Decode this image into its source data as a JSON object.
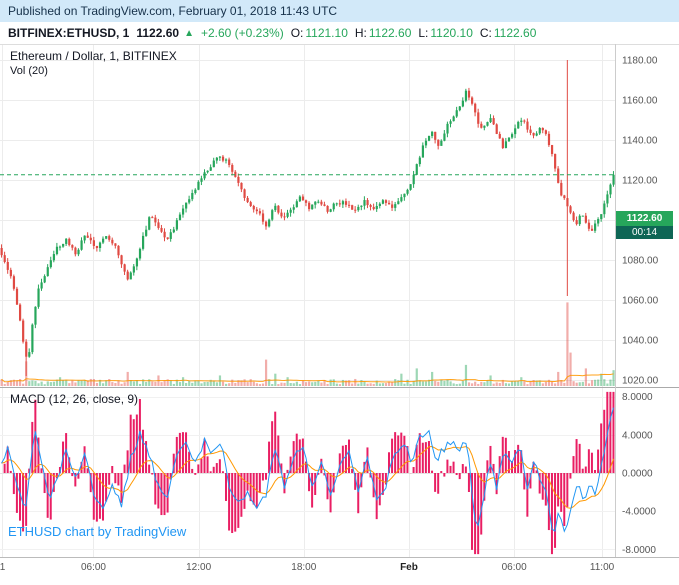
{
  "published_bar": {
    "text": "Published on TradingView.com, February 01, 2018 11:43 UTC"
  },
  "quote_bar": {
    "symbol": "BITFINEX:ETHUSD, 1",
    "last": "1122.60",
    "arrow": "▲",
    "change": "+2.60 (+0.23%)",
    "open_label": "O:",
    "open_value": "1121.10",
    "high_label": "H:",
    "high_value": "1122.60",
    "low_label": "L:",
    "low_value": "1120.10",
    "close_label": "C:",
    "close_value": "1122.60"
  },
  "legends": {
    "price": "Ethereum / Dollar, 1, BITFINEX",
    "volume": "Vol (20)",
    "macd": "MACD (12, 26, close, 9)"
  },
  "badges": {
    "last_price": "1122.60",
    "countdown": "00:14"
  },
  "watermark": {
    "text": "ETHUSD chart by TradingView"
  },
  "time_axis": {
    "ticks": [
      {
        "label": "1",
        "f": 0.004,
        "grid": true,
        "bold": false
      },
      {
        "label": "06:00",
        "f": 0.152,
        "grid": true,
        "bold": false
      },
      {
        "label": "12:00",
        "f": 0.323,
        "grid": true,
        "bold": false
      },
      {
        "label": "18:00",
        "f": 0.494,
        "grid": true,
        "bold": false
      },
      {
        "label": "Feb",
        "f": 0.665,
        "grid": true,
        "bold": true
      },
      {
        "label": "06:00",
        "f": 0.836,
        "grid": true,
        "bold": false
      },
      {
        "label": "11:00",
        "f": 0.979,
        "grid": true,
        "bold": false
      }
    ]
  },
  "colors": {
    "up": "#26a65b",
    "down": "#e04a43",
    "macd_line": "#2196f3",
    "signal_line": "#ff9800",
    "histogram": "#e91e63",
    "badge_bg": "#26a65b",
    "countdown_bg": "#0e6655",
    "published_bg": "#d2e9f9",
    "published_fg": "#16314a",
    "watermark": "#2196f3",
    "dashed_line": "#26a65b",
    "grid": "#ececec",
    "axis_text": "#555555"
  },
  "chart_data": [
    {
      "type": "candlestick",
      "title": "Ethereum / Dollar, 1, BITFINEX",
      "interval": "1",
      "ylim": [
        1017,
        1188
      ],
      "y_ticks": [
        1180,
        1160,
        1140,
        1120,
        1100,
        1080,
        1060,
        1040,
        1020
      ],
      "last": 1122.6,
      "price_path": [
        [
          0,
          1086
        ],
        [
          0.01,
          1080
        ],
        [
          0.02,
          1072
        ],
        [
          0.03,
          1058
        ],
        [
          0.04,
          1040
        ],
        [
          0.048,
          1028
        ],
        [
          0.055,
          1048
        ],
        [
          0.065,
          1066
        ],
        [
          0.08,
          1076
        ],
        [
          0.095,
          1086
        ],
        [
          0.11,
          1090
        ],
        [
          0.125,
          1083
        ],
        [
          0.14,
          1092
        ],
        [
          0.15,
          1090
        ],
        [
          0.16,
          1085
        ],
        [
          0.175,
          1093
        ],
        [
          0.19,
          1087
        ],
        [
          0.2,
          1078
        ],
        [
          0.21,
          1070
        ],
        [
          0.222,
          1078
        ],
        [
          0.235,
          1092
        ],
        [
          0.248,
          1103
        ],
        [
          0.26,
          1097
        ],
        [
          0.272,
          1090
        ],
        [
          0.285,
          1096
        ],
        [
          0.3,
          1105
        ],
        [
          0.315,
          1113
        ],
        [
          0.33,
          1121
        ],
        [
          0.345,
          1127
        ],
        [
          0.36,
          1132
        ],
        [
          0.372,
          1129
        ],
        [
          0.385,
          1122
        ],
        [
          0.398,
          1112
        ],
        [
          0.41,
          1108
        ],
        [
          0.425,
          1103
        ],
        [
          0.435,
          1097
        ],
        [
          0.448,
          1108
        ],
        [
          0.46,
          1101
        ],
        [
          0.475,
          1105
        ],
        [
          0.49,
          1111
        ],
        [
          0.505,
          1106
        ],
        [
          0.52,
          1110
        ],
        [
          0.535,
          1105
        ],
        [
          0.55,
          1109
        ],
        [
          0.565,
          1108
        ],
        [
          0.58,
          1104
        ],
        [
          0.595,
          1109
        ],
        [
          0.61,
          1105
        ],
        [
          0.625,
          1110
        ],
        [
          0.64,
          1107
        ],
        [
          0.655,
          1111
        ],
        [
          0.668,
          1116
        ],
        [
          0.68,
          1127
        ],
        [
          0.692,
          1139
        ],
        [
          0.705,
          1143
        ],
        [
          0.715,
          1137
        ],
        [
          0.728,
          1146
        ],
        [
          0.74,
          1152
        ],
        [
          0.752,
          1158
        ],
        [
          0.762,
          1165
        ],
        [
          0.772,
          1156
        ],
        [
          0.782,
          1147
        ],
        [
          0.792,
          1146
        ],
        [
          0.8,
          1152
        ],
        [
          0.81,
          1143
        ],
        [
          0.82,
          1137
        ],
        [
          0.83,
          1141
        ],
        [
          0.842,
          1148
        ],
        [
          0.852,
          1151
        ],
        [
          0.862,
          1145
        ],
        [
          0.872,
          1141
        ],
        [
          0.882,
          1146
        ],
        [
          0.892,
          1141
        ],
        [
          0.9,
          1133
        ],
        [
          0.908,
          1122
        ],
        [
          0.916,
          1112
        ],
        [
          0.924,
          1108
        ],
        [
          0.932,
          1101
        ],
        [
          0.94,
          1097
        ],
        [
          0.948,
          1104
        ],
        [
          0.956,
          1098
        ],
        [
          0.964,
          1094
        ],
        [
          0.972,
          1099
        ],
        [
          0.98,
          1104
        ],
        [
          0.988,
          1110
        ],
        [
          0.994,
          1116
        ],
        [
          1,
          1122.6
        ]
      ],
      "spikes": [
        {
          "f": 0.045,
          "low": 1022
        },
        {
          "f": 0.925,
          "high": 1180,
          "low": 1062
        }
      ],
      "volume": {
        "label": "Vol (20)",
        "scale_max": 100,
        "base_range": [
          2,
          8
        ],
        "spikes": [
          [
            0.045,
            28
          ],
          [
            0.1,
            10
          ],
          [
            0.15,
            8
          ],
          [
            0.21,
            16
          ],
          [
            0.26,
            12
          ],
          [
            0.3,
            10
          ],
          [
            0.36,
            12
          ],
          [
            0.435,
            30
          ],
          [
            0.45,
            14
          ],
          [
            0.47,
            10
          ],
          [
            0.58,
            8
          ],
          [
            0.655,
            14
          ],
          [
            0.68,
            20
          ],
          [
            0.705,
            16
          ],
          [
            0.76,
            24
          ],
          [
            0.8,
            12
          ],
          [
            0.85,
            10
          ],
          [
            0.91,
            16
          ],
          [
            0.925,
            95
          ],
          [
            0.93,
            38
          ],
          [
            0.955,
            20
          ],
          [
            0.98,
            14
          ],
          [
            1,
            18
          ]
        ]
      },
      "seed": 7
    },
    {
      "type": "macd",
      "title": "MACD (12, 26, close, 9)",
      "ylim": [
        -8.8,
        8.8
      ],
      "y_ticks": [
        8,
        4,
        0,
        -4,
        -8
      ],
      "macd_path": [
        [
          0,
          0.5
        ],
        [
          0.015,
          2.5
        ],
        [
          0.03,
          -1.5
        ],
        [
          0.045,
          -3.5
        ],
        [
          0.058,
          4.8
        ],
        [
          0.07,
          1
        ],
        [
          0.082,
          -2.8
        ],
        [
          0.095,
          -1
        ],
        [
          0.11,
          2.8
        ],
        [
          0.125,
          -0.5
        ],
        [
          0.14,
          2.2
        ],
        [
          0.155,
          -2.2
        ],
        [
          0.17,
          -3.8
        ],
        [
          0.185,
          -1
        ],
        [
          0.2,
          -3.5
        ],
        [
          0.215,
          1.5
        ],
        [
          0.23,
          4.2
        ],
        [
          0.245,
          2
        ],
        [
          0.26,
          -1.5
        ],
        [
          0.275,
          -2.5
        ],
        [
          0.29,
          1.8
        ],
        [
          0.305,
          3.2
        ],
        [
          0.32,
          1
        ],
        [
          0.335,
          3.5
        ],
        [
          0.35,
          2
        ],
        [
          0.362,
          3.3
        ],
        [
          0.375,
          -1.2
        ],
        [
          0.39,
          -3.2
        ],
        [
          0.405,
          -2
        ],
        [
          0.42,
          -3.6
        ],
        [
          0.435,
          -2.2
        ],
        [
          0.45,
          2.6
        ],
        [
          0.465,
          -1.4
        ],
        [
          0.48,
          1.8
        ],
        [
          0.495,
          2.8
        ],
        [
          0.51,
          -1.6
        ],
        [
          0.525,
          1.4
        ],
        [
          0.54,
          -2.4
        ],
        [
          0.555,
          1.2
        ],
        [
          0.57,
          2.4
        ],
        [
          0.585,
          -1.8
        ],
        [
          0.6,
          1.6
        ],
        [
          0.615,
          -2.6
        ],
        [
          0.63,
          -1.2
        ],
        [
          0.645,
          2.2
        ],
        [
          0.66,
          3
        ],
        [
          0.672,
          1.2
        ],
        [
          0.685,
          3.8
        ],
        [
          0.7,
          4.2
        ],
        [
          0.712,
          1.4
        ],
        [
          0.725,
          2.6
        ],
        [
          0.738,
          3.4
        ],
        [
          0.75,
          2.2
        ],
        [
          0.762,
          3.6
        ],
        [
          0.77,
          -2
        ],
        [
          0.778,
          -6.6
        ],
        [
          0.788,
          -3
        ],
        [
          0.798,
          1.6
        ],
        [
          0.81,
          -1.6
        ],
        [
          0.822,
          2.4
        ],
        [
          0.835,
          1
        ],
        [
          0.848,
          2.8
        ],
        [
          0.86,
          -1.8
        ],
        [
          0.872,
          1.4
        ],
        [
          0.882,
          -0.8
        ],
        [
          0.892,
          -2.6
        ],
        [
          0.902,
          -6.8
        ],
        [
          0.912,
          -4
        ],
        [
          0.922,
          -6.2
        ],
        [
          0.932,
          -3
        ],
        [
          0.942,
          -1.4
        ],
        [
          0.952,
          -2.8
        ],
        [
          0.962,
          -0.8
        ],
        [
          0.972,
          -2.2
        ],
        [
          0.982,
          1.2
        ],
        [
          0.99,
          4
        ],
        [
          1,
          6.8
        ]
      ],
      "signal_alpha": 0.15,
      "hist_scale": 2
    }
  ]
}
